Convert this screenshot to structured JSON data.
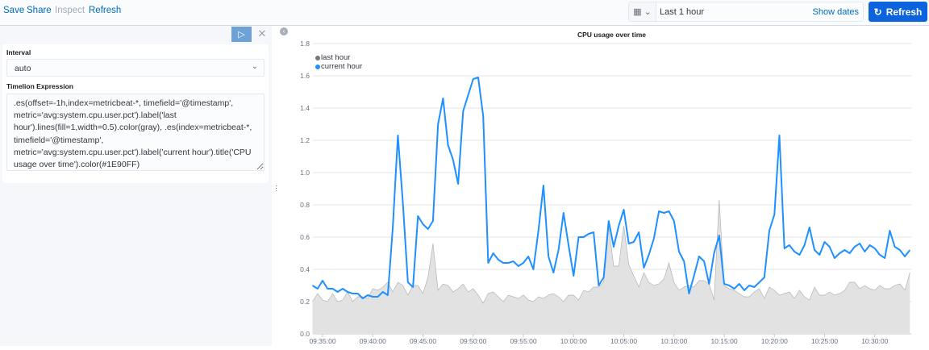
{
  "topbar": {
    "menu": [
      "Save",
      "Share",
      "Inspect",
      "Refresh"
    ],
    "time_range": "Last 1 hour",
    "show_dates": "Show dates",
    "refresh_label": "Refresh",
    "refresh_color": "#0b64dd"
  },
  "editor": {
    "interval_label": "Interval",
    "interval_value": "auto",
    "expression_label": "Timelion Expression",
    "expression": ".es(offset=-1h,index=metricbeat-*, timefield='@timestamp', metric='avg:system.cpu.user.pct').label('last hour').lines(fill=1,width=0.5).color(gray), .es(index=metricbeat-*, timefield='@timestamp', metric='avg:system.cpu.user.pct').label('current hour').title('CPU usage over time').color(#1E90FF)"
  },
  "chart_data": {
    "type": "line",
    "title": "CPU usage over time",
    "ylim": [
      0,
      1.8
    ],
    "yticks": [
      "0.0",
      "0.2",
      "0.4",
      "0.6",
      "0.8",
      "1.0",
      "1.2",
      "1.4",
      "1.6",
      "1.8"
    ],
    "xticks": [
      "09:35:00",
      "09:40:00",
      "09:45:00",
      "09:50:00",
      "09:55:00",
      "10:00:00",
      "10:05:00",
      "10:10:00",
      "10:15:00",
      "10:20:00",
      "10:25:00",
      "10:30:00"
    ],
    "grid": true,
    "legend": "top-left",
    "x": [
      "09:34:00",
      "09:34:30",
      "09:35:00",
      "09:35:30",
      "09:36:00",
      "09:36:30",
      "09:37:00",
      "09:37:30",
      "09:38:00",
      "09:38:30",
      "09:39:00",
      "09:39:30",
      "09:40:00",
      "09:40:30",
      "09:41:00",
      "09:41:30",
      "09:42:00",
      "09:42:30",
      "09:43:00",
      "09:43:30",
      "09:44:00",
      "09:44:30",
      "09:45:00",
      "09:45:30",
      "09:46:00",
      "09:46:30",
      "09:47:00",
      "09:47:30",
      "09:48:00",
      "09:48:30",
      "09:49:00",
      "09:49:30",
      "09:50:00",
      "09:50:30",
      "09:51:00",
      "09:51:30",
      "09:52:00",
      "09:52:30",
      "09:53:00",
      "09:53:30",
      "09:54:00",
      "09:54:30",
      "09:55:00",
      "09:55:30",
      "09:56:00",
      "09:56:30",
      "09:57:00",
      "09:57:30",
      "09:58:00",
      "09:58:30",
      "09:59:00",
      "09:59:30",
      "10:00:00",
      "10:00:30",
      "10:01:00",
      "10:01:30",
      "10:02:00",
      "10:02:30",
      "10:03:00",
      "10:03:30",
      "10:04:00",
      "10:04:30",
      "10:05:00",
      "10:05:30",
      "10:06:00",
      "10:06:30",
      "10:07:00",
      "10:07:30",
      "10:08:00",
      "10:08:30",
      "10:09:00",
      "10:09:30",
      "10:10:00",
      "10:10:30",
      "10:11:00",
      "10:11:30",
      "10:12:00",
      "10:12:30",
      "10:13:00",
      "10:13:30",
      "10:14:00",
      "10:14:30",
      "10:15:00",
      "10:15:30",
      "10:16:00",
      "10:16:30",
      "10:17:00",
      "10:17:30",
      "10:18:00",
      "10:18:30",
      "10:19:00",
      "10:19:30",
      "10:20:00",
      "10:20:30",
      "10:21:00",
      "10:21:30",
      "10:22:00",
      "10:22:30",
      "10:23:00",
      "10:23:30",
      "10:24:00",
      "10:24:30",
      "10:25:00",
      "10:25:30",
      "10:26:00",
      "10:26:30",
      "10:27:00",
      "10:27:30",
      "10:28:00",
      "10:28:30",
      "10:29:00",
      "10:29:30",
      "10:30:00",
      "10:30:30",
      "10:31:00",
      "10:31:30",
      "10:32:00",
      "10:32:30",
      "10:33:00",
      "10:33:30"
    ],
    "series": [
      {
        "name": "last hour",
        "color": "#808080",
        "fill": true,
        "values": [
          0.2,
          0.25,
          0.21,
          0.2,
          0.25,
          0.2,
          0.21,
          0.26,
          0.2,
          0.23,
          0.23,
          0.22,
          0.28,
          0.27,
          0.29,
          0.32,
          0.26,
          0.32,
          0.3,
          0.24,
          0.3,
          0.3,
          0.25,
          0.35,
          0.56,
          0.27,
          0.31,
          0.3,
          0.26,
          0.28,
          0.31,
          0.26,
          0.28,
          0.24,
          0.19,
          0.25,
          0.26,
          0.23,
          0.2,
          0.24,
          0.23,
          0.22,
          0.24,
          0.21,
          0.2,
          0.23,
          0.22,
          0.24,
          0.25,
          0.23,
          0.2,
          0.24,
          0.24,
          0.21,
          0.27,
          0.26,
          0.29,
          0.29,
          0.32,
          0.66,
          0.42,
          0.42,
          0.67,
          0.43,
          0.36,
          0.29,
          0.38,
          0.32,
          0.3,
          0.31,
          0.34,
          0.44,
          0.32,
          0.27,
          0.29,
          0.3,
          0.29,
          0.33,
          0.33,
          0.31,
          0.21,
          0.83,
          0.3,
          0.28,
          0.27,
          0.25,
          0.23,
          0.23,
          0.26,
          0.28,
          0.22,
          0.29,
          0.27,
          0.24,
          0.25,
          0.26,
          0.22,
          0.27,
          0.23,
          0.21,
          0.29,
          0.24,
          0.24,
          0.26,
          0.24,
          0.25,
          0.27,
          0.32,
          0.32,
          0.28,
          0.3,
          0.28,
          0.27,
          0.3,
          0.28,
          0.28,
          0.3,
          0.31,
          0.27,
          0.38
        ]
      },
      {
        "name": "current hour",
        "color": "#1E90FF",
        "fill": false,
        "values": [
          0.3,
          0.28,
          0.33,
          0.28,
          0.28,
          0.26,
          0.28,
          0.26,
          0.25,
          0.25,
          0.22,
          0.24,
          0.23,
          0.23,
          0.26,
          0.24,
          0.66,
          1.23,
          0.81,
          0.32,
          0.29,
          0.73,
          0.68,
          0.65,
          0.7,
          1.3,
          1.46,
          1.17,
          1.08,
          0.93,
          1.38,
          1.48,
          1.58,
          1.59,
          1.35,
          0.44,
          0.5,
          0.46,
          0.44,
          0.44,
          0.45,
          0.42,
          0.44,
          0.48,
          0.4,
          0.64,
          0.92,
          0.48,
          0.38,
          0.52,
          0.75,
          0.55,
          0.36,
          0.6,
          0.6,
          0.62,
          0.63,
          0.3,
          0.35,
          0.7,
          0.54,
          0.67,
          0.77,
          0.56,
          0.57,
          0.63,
          0.41,
          0.49,
          0.59,
          0.76,
          0.75,
          0.76,
          0.7,
          0.51,
          0.45,
          0.25,
          0.36,
          0.48,
          0.45,
          0.31,
          0.5,
          0.61,
          0.31,
          0.3,
          0.28,
          0.31,
          0.27,
          0.3,
          0.29,
          0.32,
          0.35,
          0.64,
          0.74,
          1.23,
          0.53,
          0.55,
          0.51,
          0.49,
          0.55,
          0.66,
          0.52,
          0.49,
          0.57,
          0.54,
          0.47,
          0.5,
          0.52,
          0.5,
          0.54,
          0.56,
          0.51,
          0.55,
          0.53,
          0.49,
          0.47,
          0.64,
          0.54,
          0.52,
          0.48,
          0.52
        ]
      }
    ]
  }
}
